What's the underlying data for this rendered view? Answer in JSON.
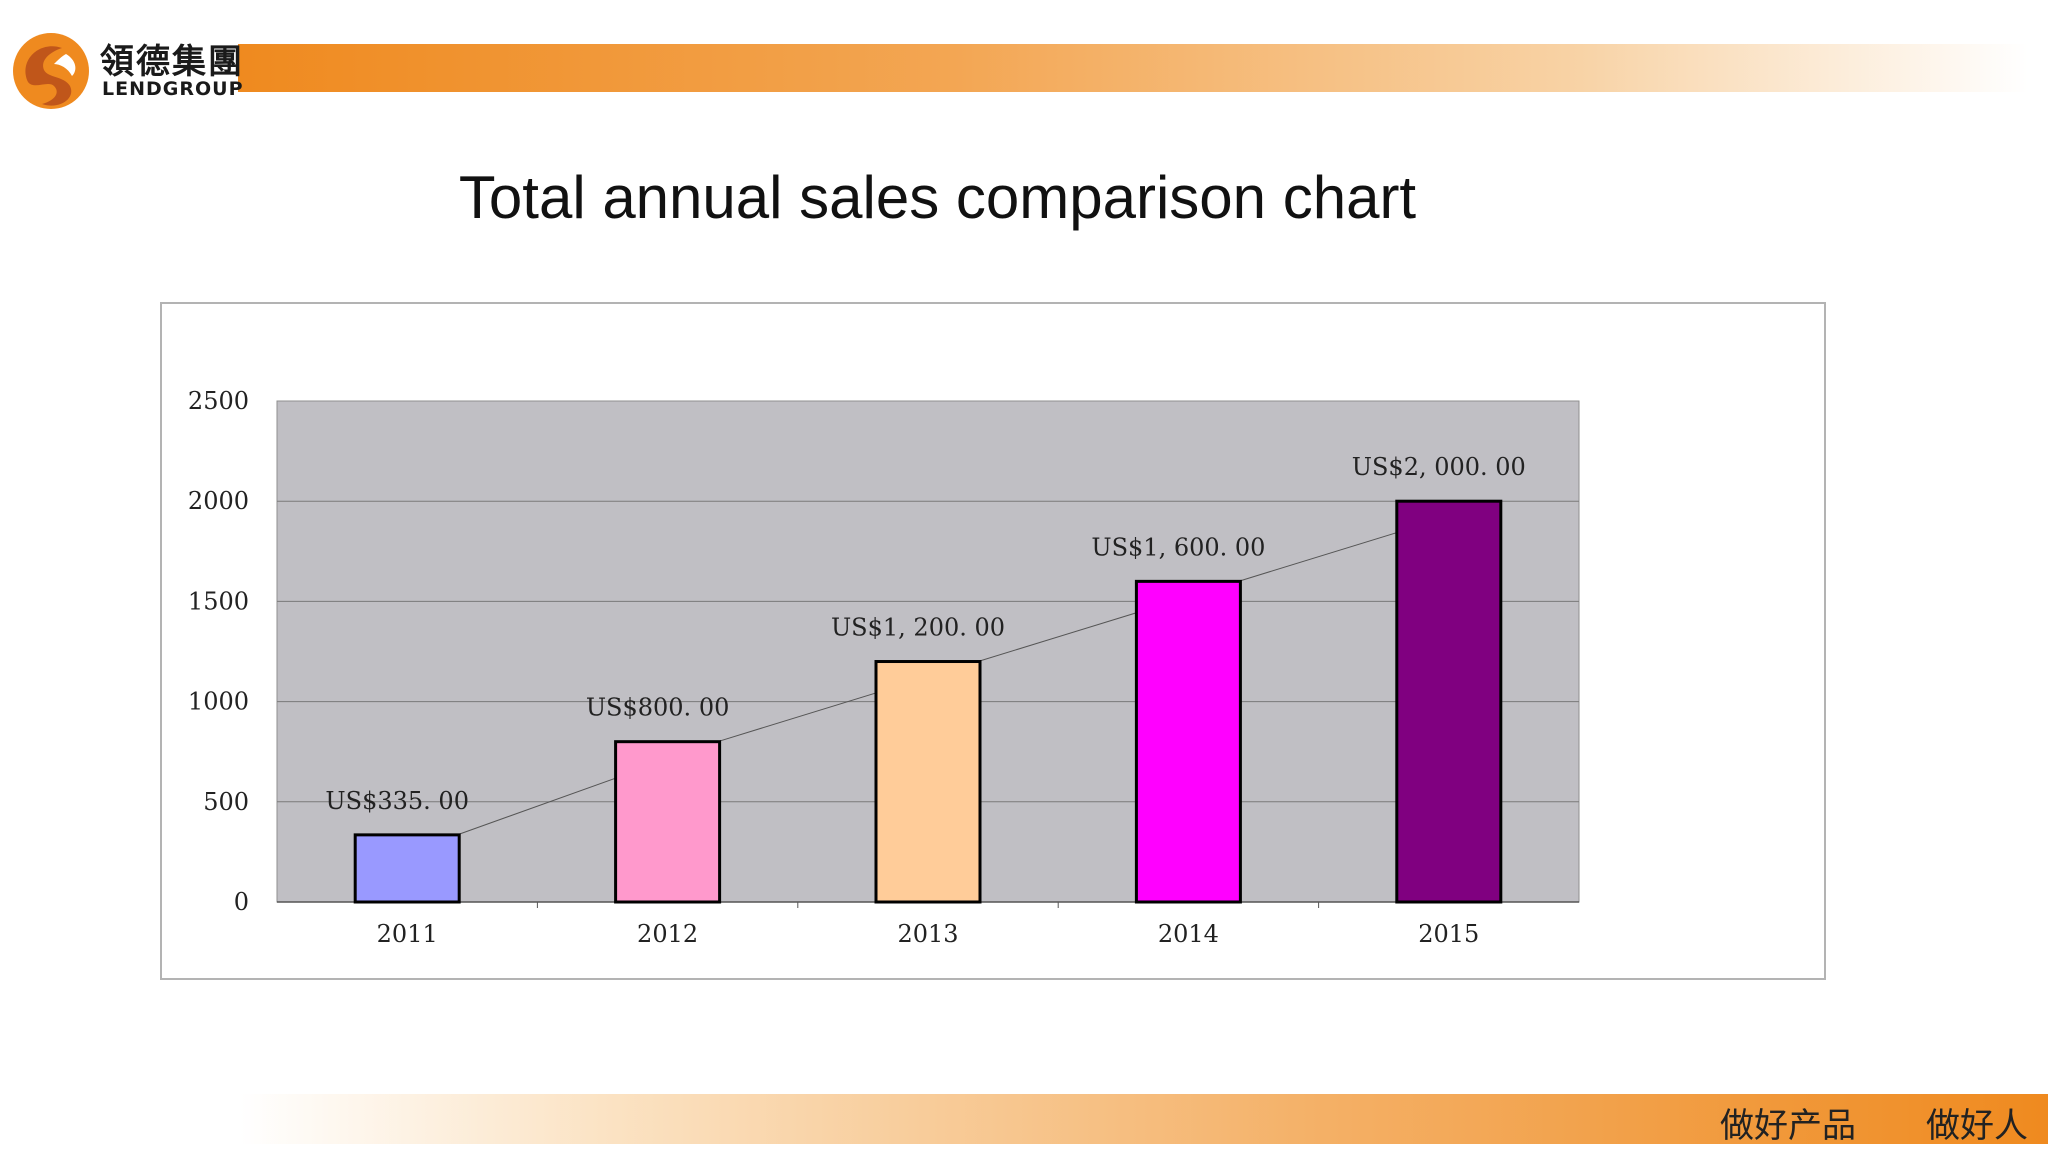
{
  "brand": {
    "name_cn": "領德集團",
    "name_en": "LENDGROUP",
    "colors": {
      "accent": "#ef8a1f",
      "logo_dark": "#c0561a"
    }
  },
  "footer": {
    "slogan_1": "做好产品",
    "slogan_2": "做好人"
  },
  "chart_data": {
    "type": "bar",
    "title": "Total annual sales comparison chart",
    "categories": [
      "2011",
      "2012",
      "2013",
      "2014",
      "2015"
    ],
    "values": [
      335,
      800,
      1200,
      1600,
      2000
    ],
    "data_labels": [
      "US$335. 00",
      "US$800. 00",
      "US$1, 200. 00",
      "US$1, 600. 00",
      "US$2, 000. 00"
    ],
    "bar_colors": [
      "#9999ff",
      "#ff99cc",
      "#ffcc99",
      "#ff00ff",
      "#800080"
    ],
    "plot_background": "#c0bfc4",
    "ylim": [
      0,
      2500
    ],
    "yticks": [
      "0",
      "500",
      "1000",
      "1500",
      "2000",
      "2500"
    ],
    "grid": true,
    "trend_line": true,
    "xlabel": "",
    "ylabel": ""
  }
}
